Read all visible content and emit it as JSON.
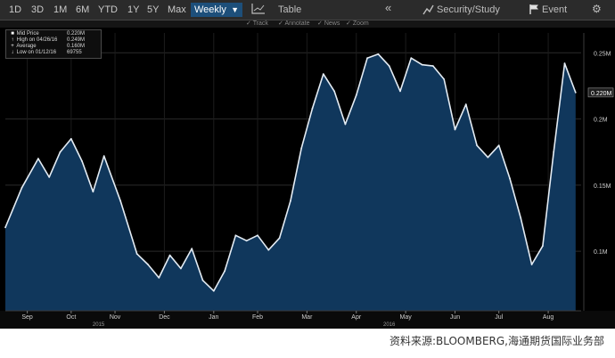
{
  "toolbar": {
    "ranges": [
      "1D",
      "3D",
      "1M",
      "6M",
      "YTD",
      "1Y",
      "5Y",
      "Max"
    ],
    "frequency": "Weekly",
    "table_label": "Table",
    "security_label": "Security/Study",
    "event_label": "Event"
  },
  "subbar": {
    "items": [
      "Track",
      "Annotate",
      "News",
      "Zoom"
    ]
  },
  "legend": {
    "rows": [
      {
        "label": "Mid Price",
        "value": "0.220M"
      },
      {
        "label": "High on 04/26/16",
        "value": "0.249M"
      },
      {
        "label": "Average",
        "value": "0.160M"
      },
      {
        "label": "Low on 01/12/16",
        "value": "69755"
      }
    ]
  },
  "caption": "资料来源:BLOOMBERG,海通期货国际业务部",
  "chart_data": {
    "type": "area",
    "title": "",
    "xlabel": "",
    "ylabel": "",
    "colors": {
      "fill": "#10375c",
      "line": "#e4ecf4",
      "background": "#000000",
      "grid": "#2a2a2a"
    },
    "ylim": [
      0.055,
      0.265
    ],
    "y_ticks": [
      {
        "value": 0.25,
        "label": "0.25M"
      },
      {
        "value": 0.2,
        "label": "0.2M"
      },
      {
        "value": 0.15,
        "label": "0.15M"
      },
      {
        "value": 0.1,
        "label": "0.1M"
      }
    ],
    "last_value": {
      "value": 0.22,
      "label": "0.220M"
    },
    "x_ticks": [
      {
        "x": 4,
        "label": "Sep"
      },
      {
        "x": 12,
        "label": "Oct"
      },
      {
        "x": 20,
        "label": "Nov"
      },
      {
        "x": 29,
        "label": "Dec"
      },
      {
        "x": 38,
        "label": "Jan"
      },
      {
        "x": 46,
        "label": "Feb"
      },
      {
        "x": 55,
        "label": "Mar"
      },
      {
        "x": 64,
        "label": "Apr"
      },
      {
        "x": 73,
        "label": "May"
      },
      {
        "x": 82,
        "label": "Jun"
      },
      {
        "x": 90,
        "label": "Jul"
      },
      {
        "x": 99,
        "label": "Aug"
      }
    ],
    "year_labels": [
      {
        "x": 17,
        "label": "2015"
      },
      {
        "x": 70,
        "label": "2016"
      }
    ],
    "x_range": [
      0,
      105
    ],
    "series": [
      {
        "name": "Mid Price",
        "x": [
          0,
          3,
          6,
          8,
          10,
          12,
          14,
          16,
          18,
          21,
          24,
          26,
          28,
          30,
          32,
          34,
          36,
          38,
          40,
          42,
          44,
          46,
          48,
          50,
          52,
          54,
          56,
          58,
          60,
          62,
          64,
          66,
          68,
          70,
          72,
          74,
          76,
          78,
          80,
          82,
          84,
          86,
          88,
          90,
          92,
          94,
          96,
          98,
          100,
          102,
          104
        ],
        "values": [
          0.118,
          0.148,
          0.17,
          0.156,
          0.175,
          0.185,
          0.168,
          0.145,
          0.172,
          0.138,
          0.098,
          0.09,
          0.08,
          0.097,
          0.087,
          0.102,
          0.078,
          0.07,
          0.085,
          0.112,
          0.108,
          0.112,
          0.101,
          0.11,
          0.138,
          0.178,
          0.208,
          0.234,
          0.221,
          0.196,
          0.218,
          0.246,
          0.249,
          0.24,
          0.221,
          0.246,
          0.241,
          0.24,
          0.23,
          0.192,
          0.211,
          0.18,
          0.171,
          0.18,
          0.155,
          0.125,
          0.09,
          0.104,
          0.175,
          0.242,
          0.22
        ]
      }
    ]
  }
}
